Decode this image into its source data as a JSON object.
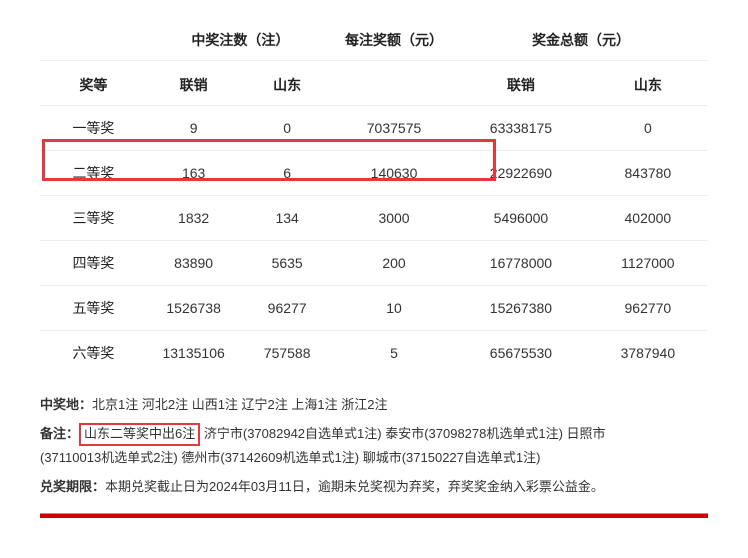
{
  "colors": {
    "highlight_border": "#e4393c",
    "row_border": "#eeeeee",
    "bottom_bar": "#d20000",
    "text": "#333333",
    "bg": "#ffffff"
  },
  "header_group": {
    "col_blank": "",
    "bets": "中奖注数（注）",
    "per_amount": "每注奖额（元）",
    "total_amount": "奖金总额（元）"
  },
  "header_sub": {
    "tier": "奖等",
    "union1": "联销",
    "sd1": "山东",
    "blank": "",
    "union2": "联销",
    "sd2": "山东"
  },
  "rows": [
    {
      "tier": "一等奖",
      "union_bets": "9",
      "sd_bets": "0",
      "per": "7037575",
      "union_total": "63338175",
      "sd_total": "0"
    },
    {
      "tier": "二等奖",
      "union_bets": "163",
      "sd_bets": "6",
      "per": "140630",
      "union_total": "22922690",
      "sd_total": "843780"
    },
    {
      "tier": "三等奖",
      "union_bets": "1832",
      "sd_bets": "134",
      "per": "3000",
      "union_total": "5496000",
      "sd_total": "402000"
    },
    {
      "tier": "四等奖",
      "union_bets": "83890",
      "sd_bets": "5635",
      "per": "200",
      "union_total": "16778000",
      "sd_total": "1127000"
    },
    {
      "tier": "五等奖",
      "union_bets": "1526738",
      "sd_bets": "96277",
      "per": "10",
      "union_total": "15267380",
      "sd_total": "962770"
    },
    {
      "tier": "六等奖",
      "union_bets": "13135106",
      "sd_bets": "757588",
      "per": "5",
      "union_total": "65675530",
      "sd_total": "3787940"
    }
  ],
  "notes": {
    "winplace_label": "中奖地：",
    "winplace_text": "北京1注 河北2注 山西1注 辽宁2注 上海1注 浙江2注",
    "remark_label": "备注：",
    "remark_highlight": "山东二等奖中出6注",
    "remark_text1": " 济宁市(37082942自选单式1注) 泰安市(37098278机选单式1注) 日照市",
    "remark_text2": "(37110013机选单式2注) 德州市(37142609机选单式1注) 聊城市(37150227自选单式1注)",
    "deadline_label": "兑奖期限：",
    "deadline_text": "本期兑奖截止日为2024年03月11日，逾期未兑奖视为弃奖，弃奖奖金纳入彩票公益金。"
  },
  "column_widths": [
    "16%",
    "14%",
    "14%",
    "18%",
    "20%",
    "18%"
  ]
}
